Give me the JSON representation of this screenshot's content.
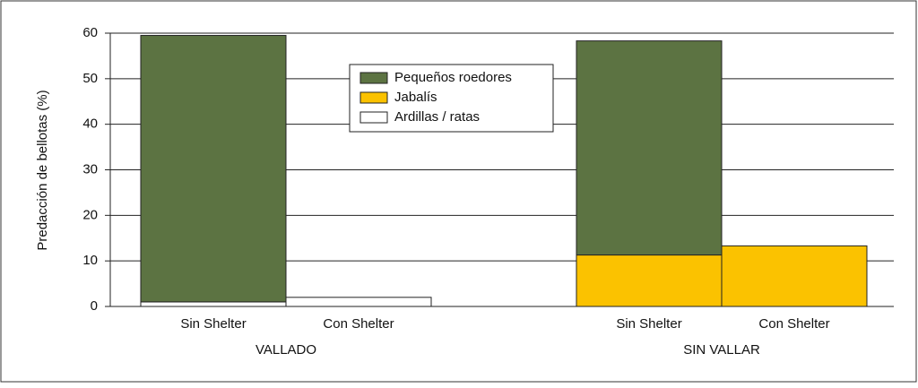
{
  "chart_data": {
    "type": "stacked-bar",
    "ylabel": "Predacción de bellotas (%)",
    "groups": [
      {
        "name": "VALLADO",
        "categories": [
          "Sin Shelter",
          "Con Shelter"
        ]
      },
      {
        "name": "SIN VALLAR",
        "categories": [
          "Sin Shelter",
          "Con Shelter"
        ]
      }
    ],
    "series": [
      {
        "name": "Ardillas / ratas",
        "color": "#ffffff",
        "values": [
          1,
          2,
          0,
          0
        ]
      },
      {
        "name": "Jabalís",
        "color": "#fbc200",
        "values": [
          0,
          0,
          11.3,
          13.3
        ]
      },
      {
        "name": "Pequeños roedores",
        "color": "#5c7342",
        "values": [
          58.5,
          0,
          47,
          0
        ]
      }
    ],
    "ylim": [
      0,
      60
    ],
    "yticks": [
      0,
      10,
      20,
      30,
      40,
      50,
      60
    ],
    "grid": true,
    "legend": "top-center"
  }
}
